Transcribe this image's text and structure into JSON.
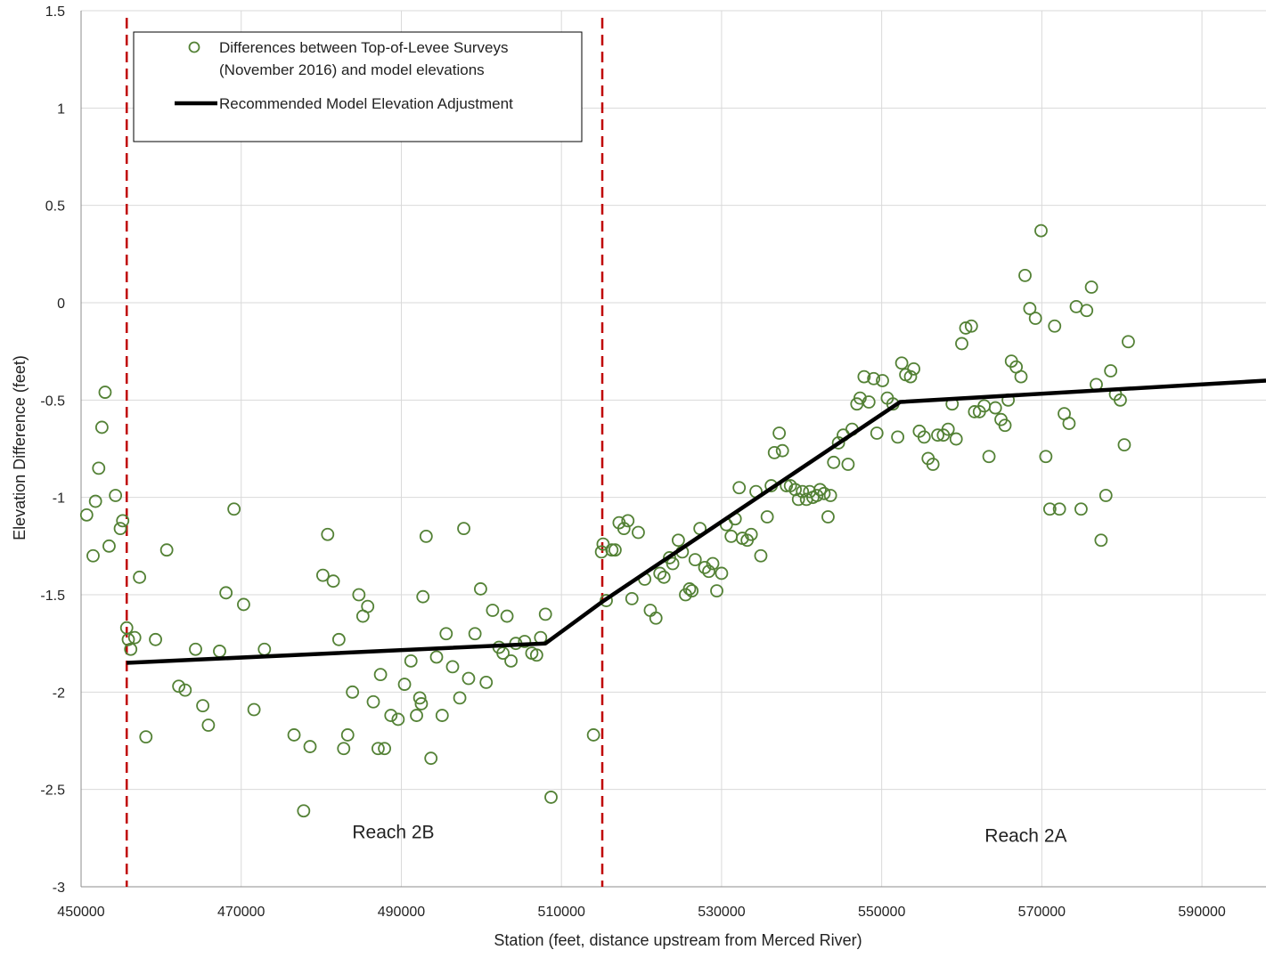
{
  "chart_data": {
    "type": "scatter",
    "xlabel": "Station (feet, distance upstream from Merced River)",
    "ylabel": "Elevation Difference (feet)",
    "xlim": [
      450000,
      598000
    ],
    "ylim": [
      -3,
      1.5
    ],
    "x_ticks": [
      450000,
      470000,
      490000,
      510000,
      530000,
      550000,
      570000,
      590000
    ],
    "x_tick_labels": [
      "450000",
      "470000",
      "490000",
      "510000",
      "530000",
      "550000",
      "570000",
      "590000"
    ],
    "y_ticks": [
      1.5,
      1,
      0.5,
      0,
      -0.5,
      -1,
      -1.5,
      -2,
      -2.5,
      -3
    ],
    "y_tick_labels": [
      "1.5",
      "1",
      "0.5",
      "0",
      "-0.5",
      "-1",
      "-1.5",
      "-2",
      "-2.5",
      "-3"
    ],
    "grid": true,
    "legend_position": "top-left",
    "legend": {
      "points_line1": "Differences between Top-of-Levee Surveys",
      "points_line2": "(November 2016) and model elevations",
      "line_label": "Recommended Model Elevation Adjustment"
    },
    "colors": {
      "points": "#538135",
      "adjustment_line": "#000000",
      "reach_boundary": "#c00000",
      "grid": "#d9d9d9"
    },
    "reach_boundaries_x": [
      455700,
      515100
    ],
    "annotations": [
      {
        "text": "Reach 2B",
        "x": 489000,
        "y": -2.75
      },
      {
        "text": "Reach 2A",
        "x": 568000,
        "y": -2.77
      }
    ],
    "series": [
      {
        "name": "Differences between Top-of-Levee Surveys (November 2016) and model elevations",
        "style": "markers",
        "points": [
          [
            450700,
            -1.09
          ],
          [
            451500,
            -1.3
          ],
          [
            451800,
            -1.02
          ],
          [
            452200,
            -0.85
          ],
          [
            452600,
            -0.64
          ],
          [
            453000,
            -0.46
          ],
          [
            453500,
            -1.25
          ],
          [
            454300,
            -0.99
          ],
          [
            454900,
            -1.16
          ],
          [
            455200,
            -1.12
          ],
          [
            455700,
            -1.67
          ],
          [
            455900,
            -1.73
          ],
          [
            456200,
            -1.78
          ],
          [
            456700,
            -1.72
          ],
          [
            457300,
            -1.41
          ],
          [
            458100,
            -2.23
          ],
          [
            459300,
            -1.73
          ],
          [
            460700,
            -1.27
          ],
          [
            462200,
            -1.97
          ],
          [
            463000,
            -1.99
          ],
          [
            464300,
            -1.78
          ],
          [
            465200,
            -2.07
          ],
          [
            465900,
            -2.17
          ],
          [
            467300,
            -1.79
          ],
          [
            468100,
            -1.49
          ],
          [
            469100,
            -1.06
          ],
          [
            470300,
            -1.55
          ],
          [
            471600,
            -2.09
          ],
          [
            472900,
            -1.78
          ],
          [
            476600,
            -2.22
          ],
          [
            477800,
            -2.61
          ],
          [
            478600,
            -2.28
          ],
          [
            480200,
            -1.4
          ],
          [
            480800,
            -1.19
          ],
          [
            481500,
            -1.43
          ],
          [
            482200,
            -1.73
          ],
          [
            482800,
            -2.29
          ],
          [
            483300,
            -2.22
          ],
          [
            483900,
            -2.0
          ],
          [
            484700,
            -1.5
          ],
          [
            485200,
            -1.61
          ],
          [
            485800,
            -1.56
          ],
          [
            486500,
            -2.05
          ],
          [
            487100,
            -2.29
          ],
          [
            487400,
            -1.91
          ],
          [
            487900,
            -2.29
          ],
          [
            488700,
            -2.12
          ],
          [
            489600,
            -2.14
          ],
          [
            490400,
            -1.96
          ],
          [
            491200,
            -1.84
          ],
          [
            491900,
            -2.12
          ],
          [
            492300,
            -2.03
          ],
          [
            492500,
            -2.06
          ],
          [
            492700,
            -1.51
          ],
          [
            493100,
            -1.2
          ],
          [
            493700,
            -2.34
          ],
          [
            494400,
            -1.82
          ],
          [
            495100,
            -2.12
          ],
          [
            495600,
            -1.7
          ],
          [
            496400,
            -1.87
          ],
          [
            497300,
            -2.03
          ],
          [
            497800,
            -1.16
          ],
          [
            498400,
            -1.93
          ],
          [
            499200,
            -1.7
          ],
          [
            499900,
            -1.47
          ],
          [
            500600,
            -1.95
          ],
          [
            501400,
            -1.58
          ],
          [
            502200,
            -1.77
          ],
          [
            502700,
            -1.8
          ],
          [
            503200,
            -1.61
          ],
          [
            503700,
            -1.84
          ],
          [
            504300,
            -1.75
          ],
          [
            505400,
            -1.74
          ],
          [
            506300,
            -1.8
          ],
          [
            506900,
            -1.81
          ],
          [
            507400,
            -1.72
          ],
          [
            508000,
            -1.6
          ],
          [
            508700,
            -2.54
          ],
          [
            514000,
            -2.22
          ],
          [
            515000,
            -1.28
          ],
          [
            515200,
            -1.24
          ],
          [
            515600,
            -1.53
          ],
          [
            516300,
            -1.27
          ],
          [
            516700,
            -1.27
          ],
          [
            517200,
            -1.13
          ],
          [
            517800,
            -1.16
          ],
          [
            518300,
            -1.12
          ],
          [
            518800,
            -1.52
          ],
          [
            519600,
            -1.18
          ],
          [
            520400,
            -1.42
          ],
          [
            521100,
            -1.58
          ],
          [
            521800,
            -1.62
          ],
          [
            522300,
            -1.39
          ],
          [
            522800,
            -1.41
          ],
          [
            523500,
            -1.31
          ],
          [
            523900,
            -1.34
          ],
          [
            524600,
            -1.22
          ],
          [
            525100,
            -1.28
          ],
          [
            525500,
            -1.5
          ],
          [
            526000,
            -1.47
          ],
          [
            526300,
            -1.48
          ],
          [
            526700,
            -1.32
          ],
          [
            527300,
            -1.16
          ],
          [
            527900,
            -1.36
          ],
          [
            528400,
            -1.38
          ],
          [
            528900,
            -1.34
          ],
          [
            529400,
            -1.48
          ],
          [
            530000,
            -1.39
          ],
          [
            530600,
            -1.14
          ],
          [
            531200,
            -1.2
          ],
          [
            531700,
            -1.11
          ],
          [
            532200,
            -0.95
          ],
          [
            532600,
            -1.21
          ],
          [
            533200,
            -1.22
          ],
          [
            533700,
            -1.19
          ],
          [
            534300,
            -0.97
          ],
          [
            534900,
            -1.3
          ],
          [
            535700,
            -1.1
          ],
          [
            536200,
            -0.94
          ],
          [
            536600,
            -0.77
          ],
          [
            537200,
            -0.67
          ],
          [
            537600,
            -0.76
          ],
          [
            538100,
            -0.94
          ],
          [
            538600,
            -0.94
          ],
          [
            539200,
            -0.96
          ],
          [
            539600,
            -1.01
          ],
          [
            540100,
            -0.97
          ],
          [
            540600,
            -1.01
          ],
          [
            541000,
            -0.97
          ],
          [
            541400,
            -1.0
          ],
          [
            541900,
            -0.99
          ],
          [
            542300,
            -0.96
          ],
          [
            542800,
            -0.98
          ],
          [
            543300,
            -1.1
          ],
          [
            543600,
            -0.99
          ],
          [
            544000,
            -0.82
          ],
          [
            544600,
            -0.72
          ],
          [
            545200,
            -0.68
          ],
          [
            545800,
            -0.83
          ],
          [
            546300,
            -0.65
          ],
          [
            546900,
            -0.52
          ],
          [
            547300,
            -0.49
          ],
          [
            547800,
            -0.38
          ],
          [
            548400,
            -0.51
          ],
          [
            549000,
            -0.39
          ],
          [
            549400,
            -0.67
          ],
          [
            550100,
            -0.4
          ],
          [
            550700,
            -0.49
          ],
          [
            551400,
            -0.52
          ],
          [
            552000,
            -0.69
          ],
          [
            552500,
            -0.31
          ],
          [
            553000,
            -0.37
          ],
          [
            553600,
            -0.38
          ],
          [
            554000,
            -0.34
          ],
          [
            554700,
            -0.66
          ],
          [
            555300,
            -0.69
          ],
          [
            555800,
            -0.8
          ],
          [
            556400,
            -0.83
          ],
          [
            557000,
            -0.68
          ],
          [
            557700,
            -0.68
          ],
          [
            558300,
            -0.65
          ],
          [
            558800,
            -0.52
          ],
          [
            559300,
            -0.7
          ],
          [
            560000,
            -0.21
          ],
          [
            560500,
            -0.13
          ],
          [
            561200,
            -0.12
          ],
          [
            561600,
            -0.56
          ],
          [
            562200,
            -0.56
          ],
          [
            562800,
            -0.53
          ],
          [
            563400,
            -0.79
          ],
          [
            564200,
            -0.54
          ],
          [
            564900,
            -0.6
          ],
          [
            565400,
            -0.63
          ],
          [
            565800,
            -0.5
          ],
          [
            566200,
            -0.3
          ],
          [
            566800,
            -0.33
          ],
          [
            567400,
            -0.38
          ],
          [
            567900,
            0.14
          ],
          [
            568500,
            -0.03
          ],
          [
            569200,
            -0.08
          ],
          [
            569900,
            0.37
          ],
          [
            570500,
            -0.79
          ],
          [
            571000,
            -1.06
          ],
          [
            571600,
            -0.12
          ],
          [
            572200,
            -1.06
          ],
          [
            572800,
            -0.57
          ],
          [
            573400,
            -0.62
          ],
          [
            574300,
            -0.02
          ],
          [
            574900,
            -1.06
          ],
          [
            575600,
            -0.04
          ],
          [
            576200,
            0.08
          ],
          [
            576800,
            -0.42
          ],
          [
            577400,
            -1.22
          ],
          [
            578000,
            -0.99
          ],
          [
            578600,
            -0.35
          ],
          [
            579200,
            -0.47
          ],
          [
            579800,
            -0.5
          ],
          [
            580300,
            -0.73
          ],
          [
            580800,
            -0.2
          ]
        ]
      },
      {
        "name": "Recommended Model Elevation Adjustment",
        "style": "line",
        "points": [
          [
            455700,
            -1.85
          ],
          [
            508000,
            -1.75
          ],
          [
            515300,
            -1.53
          ],
          [
            552300,
            -0.51
          ],
          [
            598000,
            -0.4
          ]
        ]
      }
    ]
  }
}
